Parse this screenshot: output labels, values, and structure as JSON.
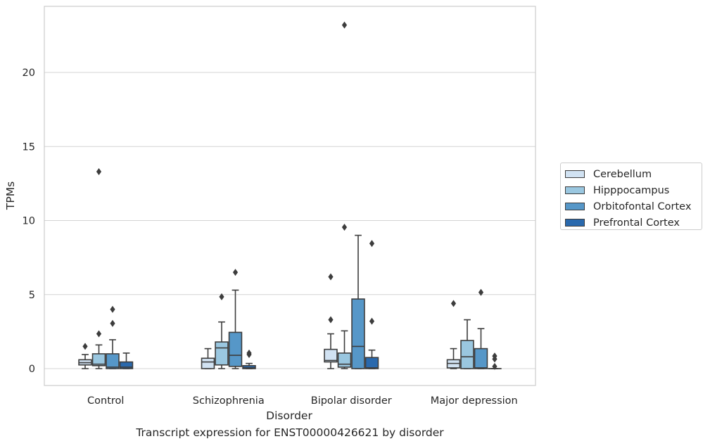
{
  "chart_data": {
    "type": "box",
    "xlabel": "Disorder",
    "ylabel": "TPMs",
    "caption": "Transcript expression for ENST00000426621 by disorder",
    "categories": [
      "Control",
      "Schizophrenia",
      "Bipolar disorder",
      "Major depression"
    ],
    "ylim": [
      -1.1,
      24.6
    ],
    "yticks": [
      0,
      5,
      10,
      15,
      20
    ],
    "grid": "horizontal",
    "legend_position": "right",
    "series": [
      {
        "name": "Cerebellum",
        "color": "#d1e2f2",
        "boxes": [
          {
            "whislo": 0.0,
            "q1": 0.25,
            "med": 0.4,
            "q3": 0.6,
            "whishi": 0.95,
            "fliers": [
              1.5
            ]
          },
          {
            "whislo": 0.0,
            "q1": 0.0,
            "med": 0.45,
            "q3": 0.7,
            "whishi": 1.35,
            "fliers": []
          },
          {
            "whislo": 0.0,
            "q1": 0.45,
            "med": 0.55,
            "q3": 1.3,
            "whishi": 2.35,
            "fliers": [
              3.3,
              6.2
            ]
          },
          {
            "whislo": 0.0,
            "q1": 0.05,
            "med": 0.35,
            "q3": 0.6,
            "whishi": 1.35,
            "fliers": [
              4.4
            ]
          }
        ]
      },
      {
        "name": "Hipppocampus",
        "color": "#9ac7e0",
        "boxes": [
          {
            "whislo": 0.0,
            "q1": 0.2,
            "med": 0.3,
            "q3": 1.0,
            "whishi": 1.6,
            "fliers": [
              2.35,
              13.3
            ]
          },
          {
            "whislo": 0.0,
            "q1": 0.25,
            "med": 1.4,
            "q3": 1.8,
            "whishi": 3.15,
            "fliers": [
              4.85
            ]
          },
          {
            "whislo": 0.0,
            "q1": 0.1,
            "med": 0.3,
            "q3": 1.05,
            "whishi": 2.55,
            "fliers": [
              9.55,
              23.2
            ]
          },
          {
            "whislo": 0.0,
            "q1": 0.0,
            "med": 0.8,
            "q3": 1.9,
            "whishi": 3.3,
            "fliers": []
          }
        ]
      },
      {
        "name": "Orbitofontal Cortex",
        "color": "#5697c8",
        "boxes": [
          {
            "whislo": 0.0,
            "q1": 0.0,
            "med": 0.1,
            "q3": 1.0,
            "whishi": 1.95,
            "fliers": [
              3.05,
              4.0
            ]
          },
          {
            "whislo": 0.0,
            "q1": 0.15,
            "med": 0.9,
            "q3": 2.45,
            "whishi": 5.3,
            "fliers": [
              6.5
            ]
          },
          {
            "whislo": 0.0,
            "q1": 0.0,
            "med": 1.5,
            "q3": 4.7,
            "whishi": 9.0,
            "fliers": []
          },
          {
            "whislo": 0.0,
            "q1": 0.0,
            "med": 0.05,
            "q3": 1.35,
            "whishi": 2.7,
            "fliers": [
              5.15
            ]
          }
        ]
      },
      {
        "name": "Prefrontal Cortex",
        "color": "#2a69ad",
        "boxes": [
          {
            "whislo": 0.0,
            "q1": 0.0,
            "med": 0.1,
            "q3": 0.45,
            "whishi": 1.05,
            "fliers": []
          },
          {
            "whislo": 0.0,
            "q1": 0.0,
            "med": 0.05,
            "q3": 0.2,
            "whishi": 0.35,
            "fliers": [
              0.95,
              1.05
            ]
          },
          {
            "whislo": 0.0,
            "q1": 0.0,
            "med": 0.05,
            "q3": 0.75,
            "whishi": 1.25,
            "fliers": [
              3.2,
              8.45
            ]
          },
          {
            "whislo": 0.0,
            "q1": 0.0,
            "med": 0.0,
            "q3": 0.0,
            "whishi": 0.0,
            "fliers": [
              0.15,
              0.65,
              0.85
            ]
          }
        ]
      }
    ]
  }
}
